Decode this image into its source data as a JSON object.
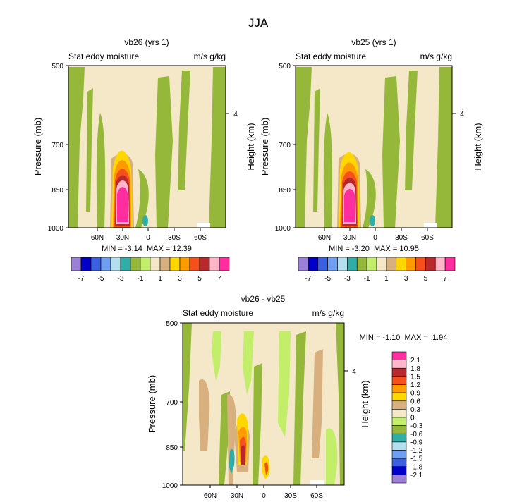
{
  "figure_title": "JJA",
  "colors": {
    "lavender": "#9b7fd9",
    "navy": "#0000c8",
    "blue": "#3a5fe0",
    "lightblue": "#6f9ff0",
    "paleblue": "#b3e0ee",
    "teal": "#2fada6",
    "olive": "#96b83a",
    "lightgreen": "#c2ee6a",
    "cream": "#f4e8c8",
    "tan": "#d8b07f",
    "yellow": "#ffd700",
    "orange": "#ff9a00",
    "redorange": "#f54f1c",
    "darkred": "#b8282d",
    "pink": "#ffb6c8",
    "magenta": "#ff2da0"
  },
  "chart_data": [
    {
      "type": "contour",
      "title": "vb26 (yrs 1)",
      "left_label": "Stat eddy moisture",
      "right_label": "m/s g/kg",
      "ylabel": "Pressure (mb)",
      "ylabel_right": "Height (km)",
      "yticks": [
        "500",
        "700",
        "850",
        "1000"
      ],
      "yticks_right": [
        "4"
      ],
      "xticks": [
        "60N",
        "30N",
        "0",
        "30S",
        "60S"
      ],
      "stats": "MIN = -3.14  MAX = 12.39",
      "min": -3.14,
      "max": 12.39,
      "colorbar": {
        "orientation": "horizontal",
        "levels": [
          -7,
          -6,
          -5,
          -4,
          -3,
          -2,
          -1,
          0,
          1,
          2,
          3,
          4,
          5,
          6,
          7
        ],
        "labels": [
          "-7",
          "-5",
          "-3",
          "-1",
          "1",
          "3",
          "5",
          "7"
        ]
      }
    },
    {
      "type": "contour",
      "title": "vb25 (yrs 1)",
      "left_label": "Stat eddy moisture",
      "right_label": "m/s g/kg",
      "ylabel": "Pressure (mb)",
      "ylabel_right": "Height (km)",
      "yticks": [
        "500",
        "700",
        "850",
        "1000"
      ],
      "yticks_right": [
        "4"
      ],
      "xticks": [
        "60N",
        "30N",
        "0",
        "30S",
        "60S"
      ],
      "stats": "MIN = -3.20  MAX = 10.95",
      "min": -3.2,
      "max": 10.95,
      "colorbar": {
        "orientation": "horizontal",
        "levels": [
          -7,
          -6,
          -5,
          -4,
          -3,
          -2,
          -1,
          0,
          1,
          2,
          3,
          4,
          5,
          6,
          7
        ],
        "labels": [
          "-7",
          "-5",
          "-3",
          "-1",
          "1",
          "3",
          "5",
          "7"
        ]
      }
    },
    {
      "type": "contour",
      "title": "vb26 - vb25",
      "left_label": "Stat eddy moisture",
      "right_label": "m/s g/kg",
      "ylabel": "Pressure (mb)",
      "ylabel_right": "Height (km)",
      "yticks": [
        "500",
        "700",
        "850",
        "1000"
      ],
      "yticks_right": [
        "4"
      ],
      "xticks": [
        "60N",
        "30N",
        "0",
        "30S",
        "60S"
      ],
      "stats": "MIN = -1.10  MAX =  1.94",
      "min": -1.1,
      "max": 1.94,
      "colorbar": {
        "orientation": "vertical",
        "levels": [
          2.1,
          1.8,
          1.5,
          1.2,
          0.9,
          0.6,
          0.3,
          0,
          -0.3,
          -0.6,
          -0.9,
          -1.2,
          -1.5,
          -1.8,
          -2.1
        ],
        "labels": [
          "2.1",
          "1.8",
          "1.5",
          "1.2",
          "0.9",
          "0.6",
          "0.3",
          "0",
          "-0.3",
          "-0.6",
          "-0.9",
          "-1.2",
          "-1.5",
          "-1.8",
          "-2.1"
        ]
      }
    }
  ]
}
